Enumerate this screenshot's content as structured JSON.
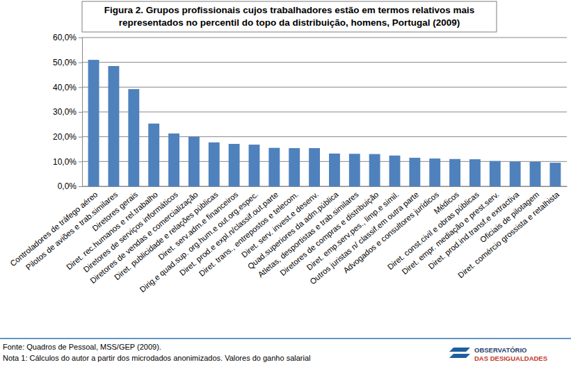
{
  "chart_data": {
    "type": "bar",
    "title": [
      "Figura 2. Grupos profissionais cujos trabalhadores estão em termos relativos mais",
      "representados no percentil do topo da distribuição, homens, Portugal (2009)"
    ],
    "categories": [
      "Controladores de tráfego aéreo",
      "Pilotos de aviões e trab.similares",
      "Diretores gerais",
      "Diret. rec.humanos e rel.trabalho",
      "Diretores de serviços informáticos",
      "Diretores de vendas e comercialização",
      "Diret. publicidade e relações públicas",
      "Diret. serv.adm.e financeiros",
      "Dirig.e quad.sup. org.hum.e out.org.espec.",
      "Diret. prod.e expl.n/classif.out.parte",
      "Diret. trans., entrepostos e telecom.",
      "Diret. serv. invest.e desenv.",
      "Quad.superiores da adm.pública",
      "Atletas, desportistas e trab.similares",
      "Diretores de compras e distribuição",
      "Diret. emp.serv.pes., limp.e simil.",
      "Outros juristas n/ classif.em outra parte",
      "Advogados e consultores jurídicos",
      "Médicos",
      "Diret. const.civil e obras públicas",
      "Diret. empr. mediação e prest.serv.",
      "Diret. prod.ind.transf.e extractiva",
      "Oficiais de pilotagem",
      "Diret. comércio grossista e retalhista"
    ],
    "values": [
      51.0,
      48.5,
      39.2,
      25.3,
      21.3,
      20.0,
      17.7,
      17.1,
      16.8,
      15.5,
      15.4,
      15.4,
      13.2,
      13.1,
      13.0,
      12.4,
      11.5,
      11.2,
      11.0,
      10.9,
      10.2,
      10.0,
      9.9,
      9.5
    ],
    "color": "#4f81bd",
    "ylim": [
      0,
      60
    ],
    "yticks": [
      {
        "value": 0,
        "label": "0,0%"
      },
      {
        "value": 10,
        "label": "10,0%"
      },
      {
        "value": 20,
        "label": "20,0%"
      },
      {
        "value": 30,
        "label": "30,0%"
      },
      {
        "value": 40,
        "label": "40,0%"
      },
      {
        "value": 50,
        "label": "50,0%"
      },
      {
        "value": 60,
        "label": "60,0%"
      }
    ],
    "grid": true,
    "annotations": [
      "Fonte: Quadros de Pessoal, MSS/GEP (2009).",
      "Nota 1: Cálculos do autor a partir dos microdados anonimizados. Valores do ganho salarial",
      "OBSERVATÓRIO",
      "DAS DESIGUALDADES"
    ]
  }
}
